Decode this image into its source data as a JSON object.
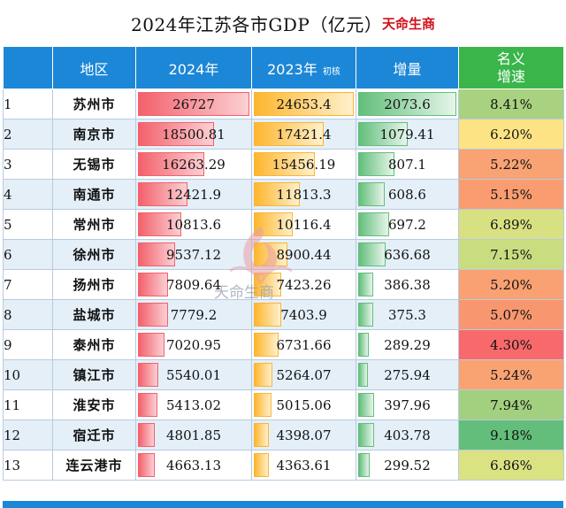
{
  "title": "2024年江苏各市GDP（亿元）",
  "brand": "天命生商",
  "watermark_text": "天命生商",
  "headers": {
    "rank": "",
    "city": "地区",
    "y2024": "2024年",
    "y2023": "2023年",
    "y2023_note": "初核",
    "growth": "增量",
    "rate_line1": "名义",
    "rate_line2": "增速"
  },
  "rows": [
    {
      "rank": "1",
      "city": "苏州市",
      "y2024": "26727",
      "y2023": "24653.4",
      "growth": "2073.6",
      "rate": "8.41%",
      "rate_color": "#a8d27f"
    },
    {
      "rank": "2",
      "city": "南京市",
      "y2024": "18500.81",
      "y2023": "17421.4",
      "growth": "1079.41",
      "rate": "6.20%",
      "rate_color": "#fde383"
    },
    {
      "rank": "3",
      "city": "无锡市",
      "y2024": "16263.29",
      "y2023": "15456.19",
      "growth": "807.1",
      "rate": "5.22%",
      "rate_color": "#f9a273"
    },
    {
      "rank": "4",
      "city": "南通市",
      "y2024": "12421.9",
      "y2023": "11813.3",
      "growth": "608.6",
      "rate": "5.15%",
      "rate_color": "#f99d71"
    },
    {
      "rank": "5",
      "city": "常州市",
      "y2024": "10813.6",
      "y2023": "10116.4",
      "growth": "697.2",
      "rate": "6.89%",
      "rate_color": "#d7e182"
    },
    {
      "rank": "6",
      "city": "徐州市",
      "y2024": "9537.12",
      "y2023": "8900.44",
      "growth": "636.68",
      "rate": "7.15%",
      "rate_color": "#c9dd80"
    },
    {
      "rank": "7",
      "city": "扬州市",
      "y2024": "7809.64",
      "y2023": "7423.26",
      "growth": "386.38",
      "rate": "5.20%",
      "rate_color": "#f9a172"
    },
    {
      "rank": "8",
      "city": "盐城市",
      "y2024": "7779.2",
      "y2023": "7403.9",
      "growth": "375.3",
      "rate": "5.07%",
      "rate_color": "#f8976f"
    },
    {
      "rank": "9",
      "city": "泰州市",
      "y2024": "7020.95",
      "y2023": "6731.66",
      "growth": "289.29",
      "rate": "4.30%",
      "rate_color": "#f8696b"
    },
    {
      "rank": "10",
      "city": "镇江市",
      "y2024": "5540.01",
      "y2023": "5264.07",
      "growth": "275.94",
      "rate": "5.24%",
      "rate_color": "#f9a373"
    },
    {
      "rank": "11",
      "city": "淮安市",
      "y2024": "5413.02",
      "y2023": "5015.06",
      "growth": "397.96",
      "rate": "7.94%",
      "rate_color": "#a3d07f"
    },
    {
      "rank": "12",
      "city": "宿迁市",
      "y2024": "4801.85",
      "y2023": "4398.07",
      "growth": "403.78",
      "rate": "9.18%",
      "rate_color": "#63be7b"
    },
    {
      "rank": "13",
      "city": "连云港市",
      "y2024": "4663.13",
      "y2023": "4363.61",
      "growth": "299.52",
      "rate": "6.86%",
      "rate_color": "#dae282"
    }
  ],
  "colors": {
    "header_blue": "#1c87d6",
    "header_green": "#39b54a",
    "bar_2024": "#f3616c",
    "bar_2023": "#fdb62e",
    "bar_growth": "#63be7b",
    "brand_red": "#d0101a"
  }
}
